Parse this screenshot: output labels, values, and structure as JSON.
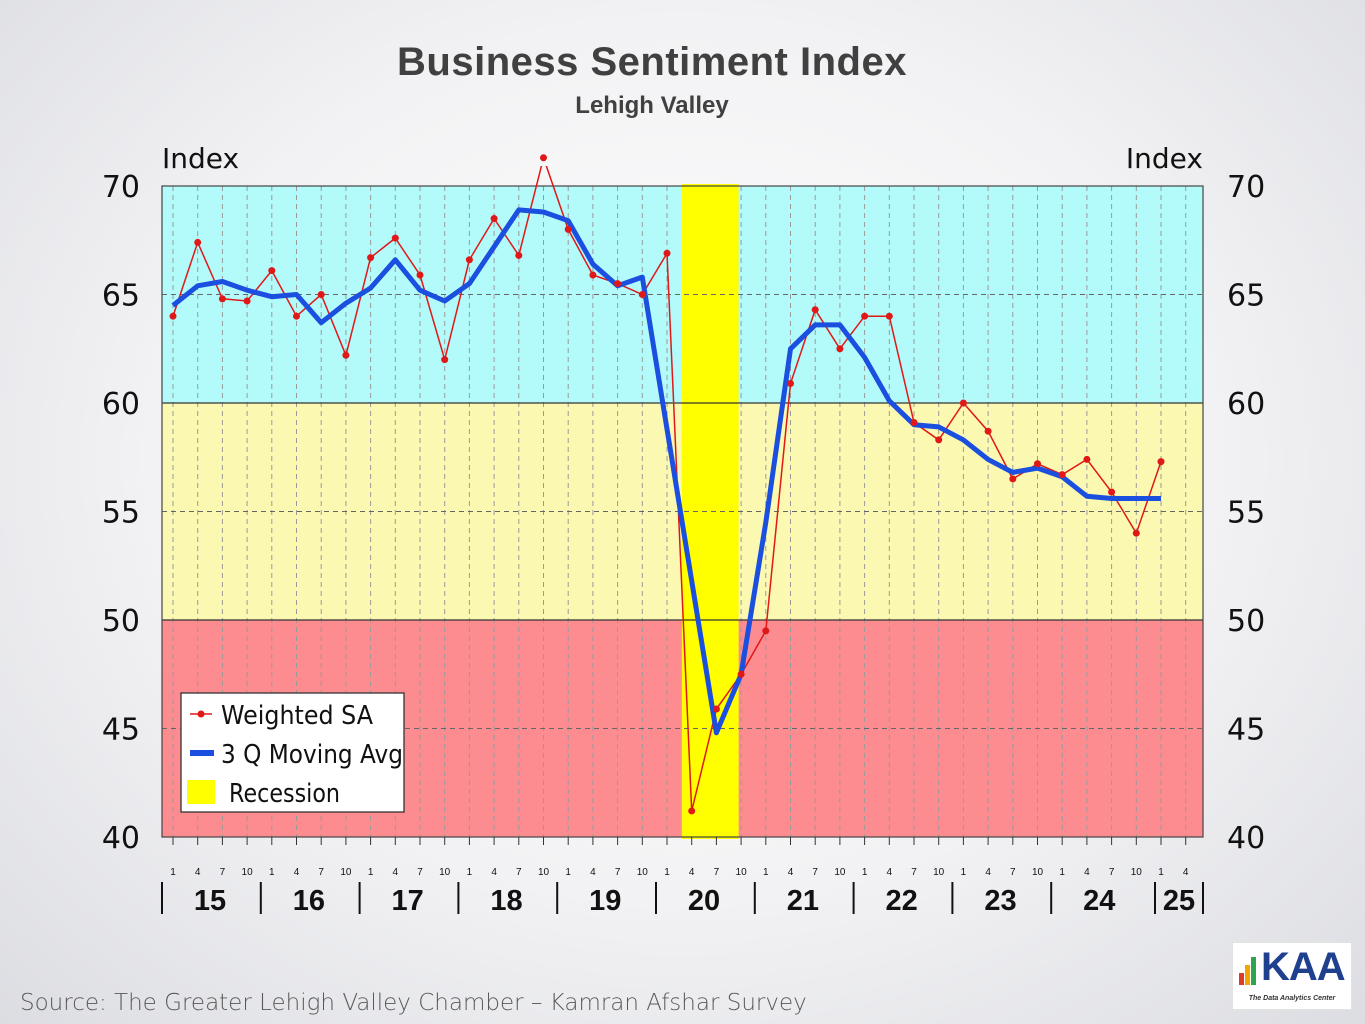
{
  "chart_data": {
    "type": "line",
    "title": "Business Sentiment Index",
    "subtitle": "Lehigh Valley",
    "ylabel_left": "Index",
    "ylabel_right": "Index",
    "ylim": [
      40,
      70
    ],
    "yticks": [
      40,
      45,
      50,
      55,
      60,
      65,
      70
    ],
    "x_quarter_labels": [
      "1",
      "4",
      "7",
      "10",
      "1",
      "4",
      "7",
      "10",
      "1",
      "4",
      "7",
      "10",
      "1",
      "4",
      "7",
      "10",
      "1",
      "4",
      "7",
      "10",
      "1",
      "4",
      "7",
      "10",
      "1",
      "4",
      "7",
      "10",
      "1",
      "4",
      "7",
      "10",
      "1",
      "4",
      "7",
      "10",
      "1",
      "4",
      "7",
      "10",
      "1",
      "4"
    ],
    "year_labels": [
      "15",
      "16",
      "17",
      "18",
      "19",
      "20",
      "21",
      "22",
      "23",
      "24",
      "25"
    ],
    "zones": [
      {
        "from": 60,
        "to": 70,
        "color": "#b3fbfb"
      },
      {
        "from": 50,
        "to": 60,
        "color": "#fbf8b2"
      },
      {
        "from": 40,
        "to": 50,
        "color": "#fd8c91"
      }
    ],
    "recession": {
      "from_index": 20.6,
      "to_index": 22.9,
      "color": "#ffff00",
      "label": "Recession"
    },
    "series": [
      {
        "name": "Weighted SA",
        "color": "#e01818",
        "x": [
          0,
          1,
          2,
          3,
          4,
          5,
          6,
          7,
          8,
          9,
          10,
          11,
          12,
          13,
          14,
          15,
          16,
          17,
          18,
          19,
          20,
          21,
          22,
          23,
          24,
          25,
          26,
          27,
          28,
          29,
          30,
          31,
          32,
          33,
          34,
          35,
          36,
          37,
          38,
          39,
          40
        ],
        "values": [
          64.0,
          67.4,
          64.8,
          64.7,
          66.1,
          64.0,
          65.0,
          62.2,
          66.7,
          67.6,
          65.9,
          62.0,
          66.6,
          68.5,
          66.8,
          71.3,
          68.0,
          65.9,
          65.5,
          65.0,
          66.9,
          41.2,
          45.9,
          47.5,
          49.5,
          60.9,
          64.3,
          62.5,
          64.0,
          64.0,
          59.1,
          58.3,
          60.0,
          58.7,
          56.5,
          57.2,
          56.7,
          57.4,
          55.9,
          54.0,
          57.3
        ]
      },
      {
        "name": "3 Q Moving Avg",
        "color": "#1a4fdf",
        "x": [
          0,
          1,
          2,
          3,
          4,
          5,
          6,
          7,
          8,
          9,
          10,
          11,
          12,
          13,
          14,
          15,
          16,
          17,
          18,
          19,
          22,
          23,
          24,
          25,
          26,
          27,
          28,
          29,
          30,
          31,
          32,
          33,
          34,
          35,
          36,
          37,
          38,
          39,
          40
        ],
        "values": [
          64.5,
          65.4,
          65.6,
          65.2,
          64.9,
          65.0,
          63.7,
          64.6,
          65.3,
          66.6,
          65.2,
          64.7,
          65.5,
          67.2,
          68.9,
          68.8,
          68.4,
          66.4,
          65.4,
          65.8,
          44.8,
          47.5,
          54.5,
          62.5,
          63.6,
          63.6,
          62.1,
          60.1,
          59.0,
          58.9,
          58.3,
          57.4,
          56.8,
          57.0,
          56.6,
          55.7,
          55.6,
          55.6,
          55.6
        ]
      }
    ],
    "legend": {
      "placement": "bottom-left",
      "entries": [
        "Weighted SA",
        "3 Q Moving Avg",
        "Recession"
      ]
    },
    "grid": true
  },
  "footer": {
    "source": "Source: The Greater Lehigh Valley Chamber – Kamran Afshar Survey",
    "logo_text": "KAA",
    "logo_tagline": "The Data Analytics Center"
  }
}
